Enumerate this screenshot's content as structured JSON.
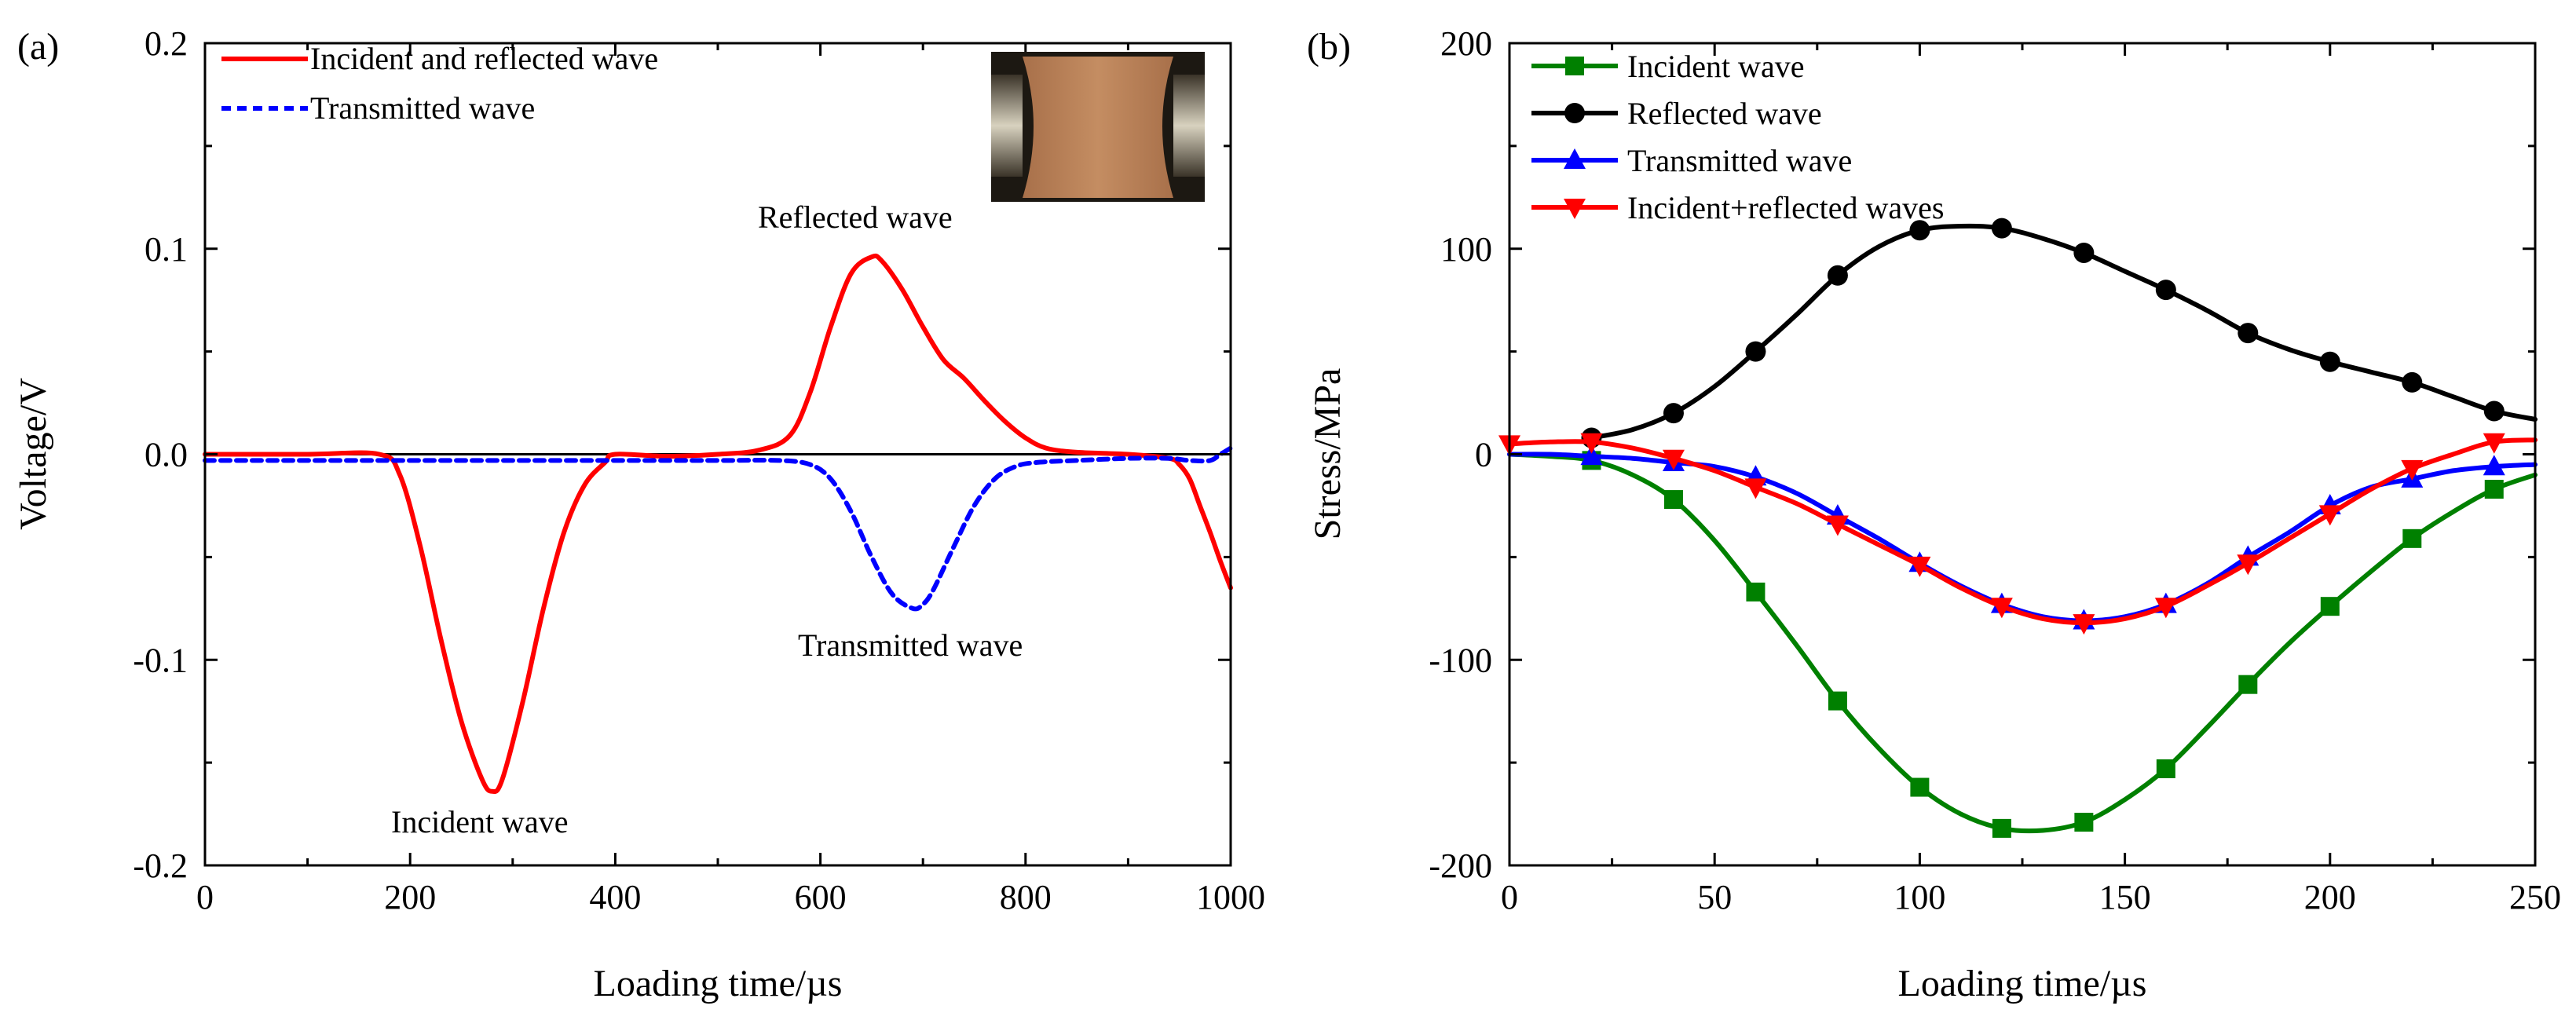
{
  "chart_data": [
    {
      "type": "line",
      "panel_label": "(a)",
      "xlabel": "Loading time/µs",
      "ylabel": "Voltage/V",
      "xlim": [
        0,
        1000
      ],
      "ylim": [
        -0.2,
        0.2
      ],
      "xticks": [
        "0",
        "200",
        "400",
        "600",
        "800",
        "1000"
      ],
      "yticks": [
        "-0.2",
        "-0.1",
        "0.0",
        "0.1",
        "0.2"
      ],
      "xtick_values": [
        0,
        200,
        400,
        600,
        800,
        1000
      ],
      "ytick_values": [
        -0.2,
        -0.1,
        0.0,
        0.1,
        0.2
      ],
      "legend": [
        "Incident and reflected wave",
        "Transmitted wave"
      ],
      "annotations": [
        "Reflected wave",
        "Transmitted wave",
        "Incident wave"
      ],
      "series": [
        {
          "name": "Incident and reflected wave",
          "color": "#ff0000",
          "style": "solid",
          "x": [
            0,
            100,
            170,
            190,
            210,
            230,
            250,
            270,
            280,
            290,
            310,
            330,
            350,
            370,
            390,
            400,
            450,
            500,
            540,
            570,
            590,
            610,
            630,
            650,
            660,
            680,
            700,
            720,
            740,
            760,
            780,
            800,
            820,
            850,
            900,
            940,
            950,
            960,
            970,
            980,
            990,
            1000
          ],
          "y": [
            0.0,
            0.0,
            0.0,
            -0.01,
            -0.045,
            -0.09,
            -0.13,
            -0.158,
            -0.164,
            -0.158,
            -0.12,
            -0.075,
            -0.038,
            -0.015,
            -0.004,
            0.0,
            -0.001,
            0.0,
            0.002,
            0.009,
            0.03,
            0.062,
            0.088,
            0.096,
            0.094,
            0.08,
            0.062,
            0.046,
            0.037,
            0.026,
            0.016,
            0.008,
            0.003,
            0.001,
            0.0,
            -0.002,
            -0.005,
            -0.012,
            -0.025,
            -0.038,
            -0.052,
            -0.065
          ]
        },
        {
          "name": "Transmitted wave",
          "color": "#0000ff",
          "style": "dashed",
          "x": [
            0,
            100,
            200,
            300,
            400,
            500,
            560,
            590,
            610,
            630,
            650,
            670,
            690,
            700,
            710,
            730,
            750,
            770,
            790,
            810,
            850,
            900,
            940,
            960,
            980,
            990,
            1000
          ],
          "y": [
            -0.003,
            -0.003,
            -0.003,
            -0.003,
            -0.003,
            -0.003,
            -0.003,
            -0.005,
            -0.012,
            -0.028,
            -0.05,
            -0.068,
            -0.075,
            -0.073,
            -0.066,
            -0.045,
            -0.025,
            -0.012,
            -0.006,
            -0.004,
            -0.003,
            -0.002,
            -0.002,
            -0.003,
            -0.003,
            0.0,
            0.003
          ]
        }
      ]
    },
    {
      "type": "line",
      "panel_label": "(b)",
      "xlabel": "Loading time/µs",
      "ylabel": "Stress/MPa",
      "xlim": [
        0,
        250
      ],
      "ylim": [
        -200,
        200
      ],
      "xticks": [
        "0",
        "50",
        "100",
        "150",
        "200",
        "250"
      ],
      "yticks": [
        "-200",
        "-100",
        "0",
        "100",
        "200"
      ],
      "xtick_values": [
        0,
        50,
        100,
        150,
        200,
        250
      ],
      "ytick_values": [
        -200,
        -100,
        0,
        100,
        200
      ],
      "legend": [
        "Incident wave",
        "Reflected wave",
        "Transmitted wave",
        "Incident+reflected waves"
      ],
      "series": [
        {
          "name": "Incident wave",
          "color": "#008000",
          "marker": "square",
          "x": [
            0,
            10,
            20,
            30,
            40,
            50,
            60,
            70,
            80,
            90,
            100,
            110,
            120,
            130,
            140,
            150,
            160,
            170,
            180,
            190,
            200,
            210,
            220,
            230,
            240,
            250
          ],
          "y": [
            0,
            -1,
            -3,
            -10,
            -22,
            -42,
            -67,
            -93,
            -120,
            -143,
            -162,
            -175,
            -182,
            -183,
            -179,
            -168,
            -153,
            -133,
            -112,
            -92,
            -74,
            -57,
            -41,
            -28,
            -17,
            -10
          ],
          "marker_x": [
            20,
            40,
            60,
            80,
            100,
            120,
            140,
            160,
            180,
            200,
            220,
            240
          ]
        },
        {
          "name": "Reflected wave",
          "color": "#000000",
          "marker": "circle",
          "x": [
            20,
            30,
            40,
            50,
            60,
            70,
            80,
            90,
            100,
            110,
            120,
            130,
            140,
            150,
            160,
            170,
            180,
            190,
            200,
            210,
            220,
            230,
            240,
            250
          ],
          "y": [
            8,
            12,
            20,
            33,
            50,
            68,
            87,
            101,
            109,
            111,
            110,
            105,
            98,
            89,
            80,
            70,
            59,
            51,
            45,
            40,
            35,
            28,
            21,
            17
          ],
          "marker_x": [
            20,
            40,
            60,
            80,
            100,
            120,
            140,
            160,
            180,
            200,
            220,
            240
          ]
        },
        {
          "name": "Transmitted wave",
          "color": "#0000ff",
          "marker": "triangle-up",
          "x": [
            0,
            10,
            20,
            30,
            40,
            50,
            60,
            70,
            80,
            90,
            100,
            110,
            120,
            130,
            140,
            150,
            160,
            170,
            180,
            190,
            200,
            210,
            220,
            230,
            240,
            250
          ],
          "y": [
            0,
            0,
            -1,
            -2,
            -4,
            -6,
            -11,
            -19,
            -30,
            -41,
            -53,
            -64,
            -73,
            -79,
            -81,
            -79,
            -73,
            -63,
            -50,
            -38,
            -25,
            -16,
            -12,
            -8,
            -6,
            -5
          ],
          "marker_x": [
            20,
            40,
            60,
            80,
            100,
            120,
            140,
            160,
            180,
            200,
            220,
            240
          ]
        },
        {
          "name": "Incident+reflected waves",
          "color": "#ff0000",
          "marker": "triangle-down",
          "x": [
            0,
            10,
            20,
            30,
            40,
            50,
            60,
            70,
            80,
            90,
            100,
            110,
            120,
            130,
            140,
            150,
            160,
            170,
            180,
            190,
            200,
            210,
            220,
            230,
            240,
            250
          ],
          "y": [
            5,
            6,
            6,
            3,
            -2,
            -8,
            -16,
            -24,
            -34,
            -44,
            -54,
            -65,
            -74,
            -80,
            -82,
            -80,
            -74,
            -64,
            -53,
            -41,
            -29,
            -17,
            -7,
            0,
            6,
            7
          ],
          "marker_x": [
            0,
            20,
            40,
            60,
            80,
            100,
            120,
            140,
            160,
            180,
            200,
            220,
            240
          ]
        }
      ]
    }
  ]
}
